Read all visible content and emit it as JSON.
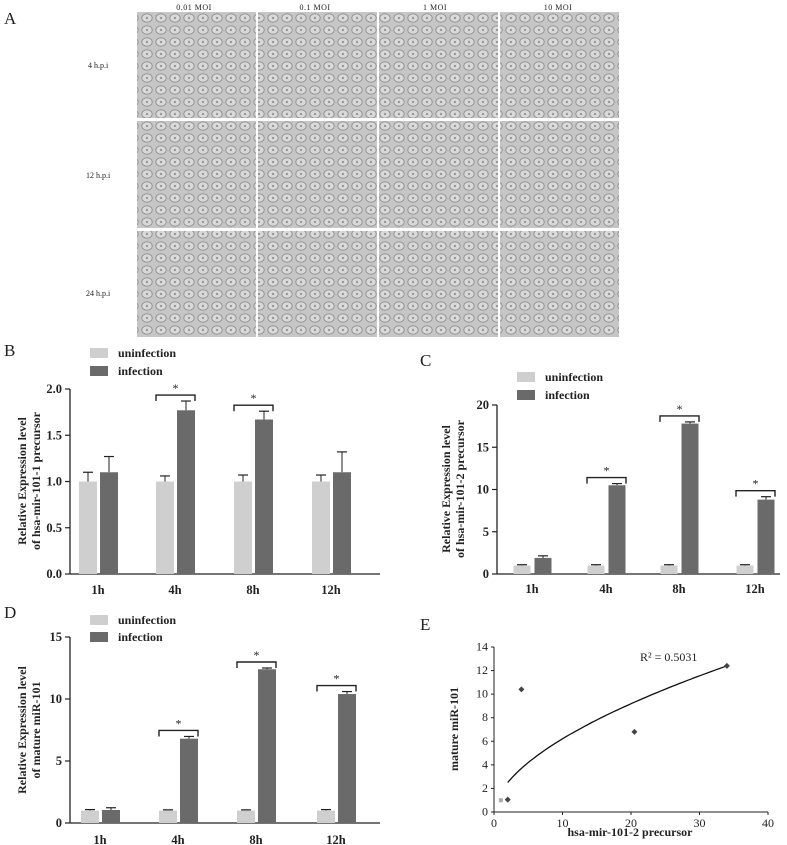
{
  "colors": {
    "uninfection": "#cfcfcf",
    "infection": "#6a6a6a",
    "axis": "#222222",
    "micro_bg": "#bfbfbf"
  },
  "panel_a": {
    "letter": "A",
    "columns": [
      "0.01  MOI",
      "0.1  MOI",
      "1  MOI",
      "10  MOI"
    ],
    "rows": [
      "4 h.p.i",
      "12 h.p.i",
      "24 h.p.i"
    ]
  },
  "chart_data": [
    {
      "id": "B",
      "type": "bar",
      "letter": "B",
      "categories": [
        "1h",
        "4h",
        "8h",
        "12h"
      ],
      "series": [
        {
          "name": "uninfection",
          "values": [
            1.0,
            1.0,
            1.0,
            1.0
          ],
          "errors": [
            0.1,
            0.06,
            0.07,
            0.07
          ]
        },
        {
          "name": "infection",
          "values": [
            1.1,
            1.77,
            1.67,
            1.1
          ],
          "errors": [
            0.17,
            0.1,
            0.09,
            0.22
          ]
        }
      ],
      "ylabel": [
        "Relative Expression level",
        "of hsa-mir-101-1 precursor"
      ],
      "ylim": [
        0,
        2.0
      ],
      "yticks": [
        "0.0",
        "0.5",
        "1.0",
        "1.5",
        "2.0"
      ],
      "ytick_values": [
        0,
        0.5,
        1.0,
        1.5,
        2.0
      ],
      "significance": [
        {
          "category": "4h",
          "label": "*"
        },
        {
          "category": "8h",
          "label": "*"
        }
      ],
      "legend": "top-left"
    },
    {
      "id": "C",
      "type": "bar",
      "letter": "C",
      "categories": [
        "1h",
        "4h",
        "8h",
        "12h"
      ],
      "series": [
        {
          "name": "uninfection",
          "values": [
            1.0,
            1.0,
            1.0,
            1.0
          ],
          "errors": [
            0.1,
            0.1,
            0.1,
            0.1
          ]
        },
        {
          "name": "infection",
          "values": [
            1.9,
            10.5,
            17.8,
            8.8
          ],
          "errors": [
            0.25,
            0.2,
            0.2,
            0.35
          ]
        }
      ],
      "ylabel": [
        "Relative Expression level",
        "of hsa-mir-101-2 precursor"
      ],
      "ylim": [
        0,
        20
      ],
      "yticks": [
        "0",
        "5",
        "10",
        "15",
        "20"
      ],
      "ytick_values": [
        0,
        5,
        10,
        15,
        20
      ],
      "significance": [
        {
          "category": "4h",
          "label": "*"
        },
        {
          "category": "8h",
          "label": "*"
        },
        {
          "category": "12h",
          "label": "*"
        }
      ],
      "legend": "top-left"
    },
    {
      "id": "D",
      "type": "bar",
      "letter": "D",
      "categories": [
        "1h",
        "4h",
        "8h",
        "12h"
      ],
      "series": [
        {
          "name": "uninfection",
          "values": [
            1.0,
            1.0,
            1.0,
            1.0
          ],
          "errors": [
            0.08,
            0.06,
            0.06,
            0.08
          ]
        },
        {
          "name": "infection",
          "values": [
            1.05,
            6.8,
            12.4,
            10.4
          ],
          "errors": [
            0.18,
            0.18,
            0.1,
            0.2
          ]
        }
      ],
      "ylabel": [
        "Relative Expression level",
        "of mature miR-101"
      ],
      "ylim": [
        0,
        15
      ],
      "yticks": [
        "0",
        "5",
        "10",
        "15"
      ],
      "ytick_values": [
        0,
        5,
        10,
        15
      ],
      "significance": [
        {
          "category": "4h",
          "label": "*"
        },
        {
          "category": "8h",
          "label": "*"
        },
        {
          "category": "12h",
          "label": "*"
        }
      ],
      "legend": "top-left"
    },
    {
      "id": "E",
      "type": "scatter",
      "letter": "E",
      "points": [
        {
          "x": 1.0,
          "y": 1.0,
          "shade": "light"
        },
        {
          "x": 2.0,
          "y": 1.05,
          "shade": "dark"
        },
        {
          "x": 4.0,
          "y": 10.4,
          "shade": "dark"
        },
        {
          "x": 20.5,
          "y": 6.8,
          "shade": "dark"
        },
        {
          "x": 34.0,
          "y": 12.4,
          "shade": "dark"
        }
      ],
      "trendline": {
        "kind": "power",
        "x_range": [
          2.0,
          34.0
        ],
        "y_at_start": 2.5,
        "y_at_end": 12.4
      },
      "annotation": "R² = 0.5031",
      "xlabel": "hsa-mir-101-2 precursor",
      "ylabel": "mature miR-101",
      "xlim": [
        0,
        40
      ],
      "xticks": [
        "0",
        "10",
        "20",
        "30",
        "40"
      ],
      "xtick_values": [
        0,
        10,
        20,
        30,
        40
      ],
      "ylim": [
        0,
        14
      ],
      "yticks": [
        "0",
        "2",
        "4",
        "6",
        "8",
        "10",
        "12",
        "14"
      ],
      "ytick_values": [
        0,
        2,
        4,
        6,
        8,
        10,
        12,
        14
      ]
    }
  ]
}
